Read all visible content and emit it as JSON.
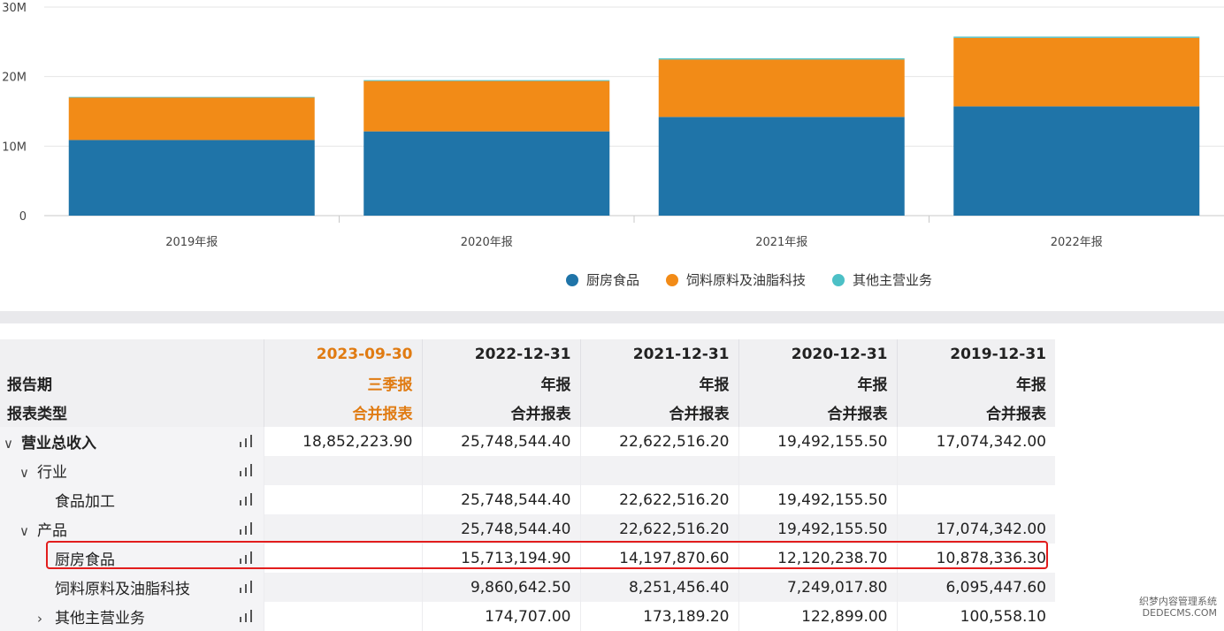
{
  "chart_data": {
    "type": "bar",
    "stacked": true,
    "categories": [
      "2019年报",
      "2020年报",
      "2021年报",
      "2022年报"
    ],
    "series": [
      {
        "name": "厨房食品",
        "color": "#1f74a8",
        "values": [
          10878336.3,
          12120238.7,
          14197870.6,
          15713194.9
        ]
      },
      {
        "name": "饲料原料及油脂科技",
        "color": "#f28b17",
        "values": [
          6095447.6,
          7249017.8,
          8251456.4,
          9860642.5
        ]
      },
      {
        "name": "其他主营业务",
        "color": "#4cc0c6",
        "values": [
          100558.1,
          122899.0,
          173189.2,
          174707.0
        ]
      }
    ],
    "ylim": [
      0,
      30000000
    ],
    "yticks": [
      {
        "value": 0,
        "label": "0"
      },
      {
        "value": 10000000,
        "label": "10M"
      },
      {
        "value": 20000000,
        "label": "20M"
      },
      {
        "value": 30000000,
        "label": "30M"
      }
    ],
    "grid": true,
    "legend_position": "bottom-right"
  },
  "table": {
    "header_rows": [
      {
        "label": "",
        "cells": [
          "2023-09-30",
          "2022-12-31",
          "2021-12-31",
          "2020-12-31",
          "2019-12-31"
        ]
      },
      {
        "label": "报告期",
        "cells": [
          "三季报",
          "年报",
          "年报",
          "年报",
          "年报"
        ]
      },
      {
        "label": "报表类型",
        "cells": [
          "合并报表",
          "合并报表",
          "合并报表",
          "合并报表",
          "合并报表"
        ]
      }
    ],
    "rows": [
      {
        "label": "营业总收入",
        "chevron": "down",
        "values": [
          "18,852,223.90",
          "25,748,544.40",
          "22,622,516.20",
          "19,492,155.50",
          "17,074,342.00"
        ]
      },
      {
        "label": "行业",
        "chevron": "down",
        "values": [
          "",
          "",
          "",
          "",
          ""
        ]
      },
      {
        "label": "食品加工",
        "chevron": "",
        "values": [
          "",
          "25,748,544.40",
          "22,622,516.20",
          "19,492,155.50",
          ""
        ]
      },
      {
        "label": "产品",
        "chevron": "down",
        "values": [
          "",
          "25,748,544.40",
          "22,622,516.20",
          "19,492,155.50",
          "17,074,342.00"
        ]
      },
      {
        "label": "厨房食品",
        "chevron": "",
        "values": [
          "",
          "15,713,194.90",
          "14,197,870.60",
          "12,120,238.70",
          "10,878,336.30"
        ]
      },
      {
        "label": "饲料原料及油脂科技",
        "chevron": "",
        "values": [
          "",
          "9,860,642.50",
          "8,251,456.40",
          "7,249,017.80",
          "6,095,447.60"
        ]
      },
      {
        "label": "其他主营业务",
        "chevron": "right",
        "values": [
          "",
          "174,707.00",
          "173,189.20",
          "122,899.00",
          "100,558.10"
        ]
      }
    ],
    "highlight_color": "#e07b12",
    "highlight_box_color": "#e21d1d"
  },
  "watermark": {
    "line1": "织梦内容管理系统",
    "line2": "DEDECMS.COM"
  }
}
